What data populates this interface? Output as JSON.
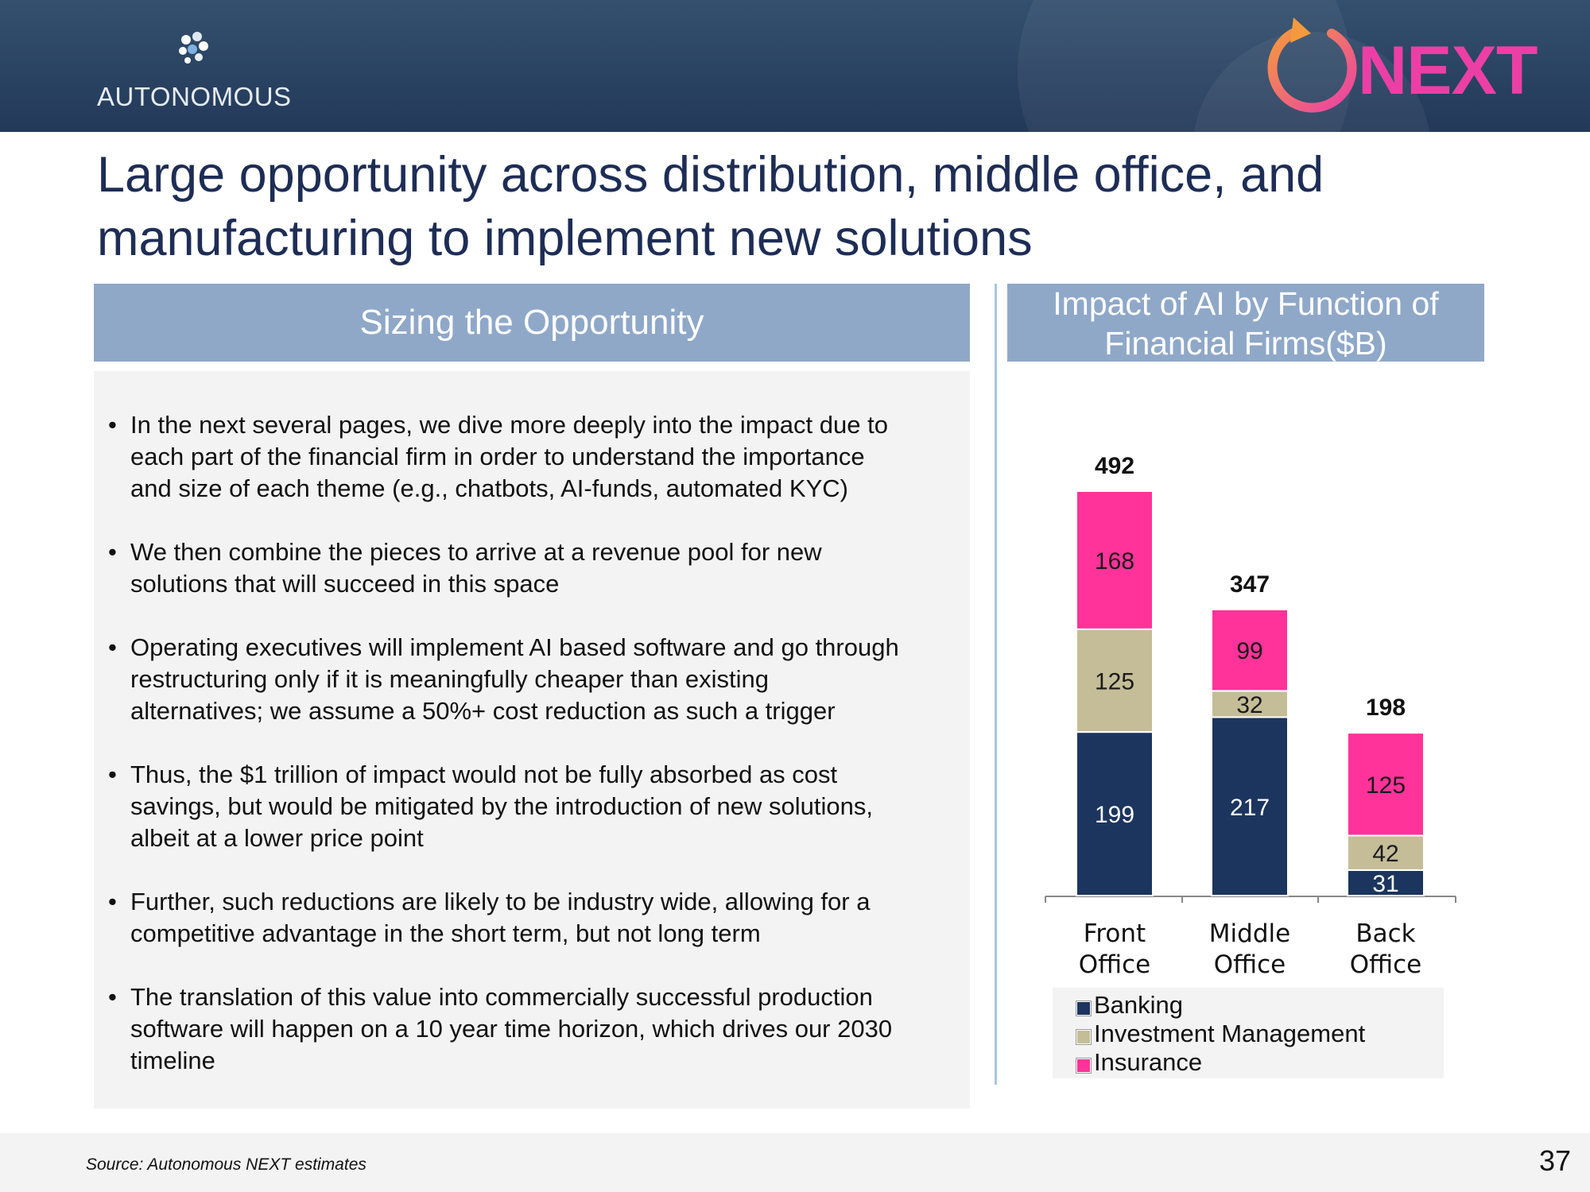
{
  "brand": {
    "name": "AUTONOMOUS",
    "next_label": "NEXT"
  },
  "title": {
    "line1": "Large opportunity across distribution, middle office, and",
    "line2": "manufacturing to implement new solutions"
  },
  "left_panel": {
    "heading": "Sizing the Opportunity",
    "bullets": [
      [
        "In the next several pages, we dive more deeply into the impact due to",
        "each part of the financial firm in order to understand the importance",
        "and size of each theme (e.g., chatbots, AI-funds, automated KYC)"
      ],
      [
        "We then combine the pieces to arrive at a revenue pool for new",
        "solutions that will succeed in this space"
      ],
      [
        "Operating executives will implement AI based software and go through",
        "restructuring only if it is meaningfully cheaper than existing",
        "alternatives; we assume a 50%+ cost reduction as such a trigger"
      ],
      [
        "Thus, the $1 trillion of impact would not be fully absorbed as cost",
        "savings, but would be mitigated by the introduction of new solutions,",
        "albeit at a lower price point"
      ],
      [
        "Further, such reductions are likely to be industry wide, allowing for a",
        "competitive advantage in the short term, but not long term"
      ],
      [
        "The translation of this value into commercially successful production",
        "software will happen on a 10 year time horizon, which drives our 2030",
        "timeline"
      ]
    ]
  },
  "chart_data": {
    "type": "bar",
    "stacked": true,
    "title": "Impact of AI by Function of Financial Firms($B)",
    "title_lines": [
      "Impact of AI by Function of",
      "Financial Firms($B)"
    ],
    "categories": [
      [
        "Front",
        "Office"
      ],
      [
        "Middle",
        "Office"
      ],
      [
        "Back",
        "Office"
      ]
    ],
    "series": [
      {
        "name": "Banking",
        "color": "#1c355e",
        "label_color": "#ffffff",
        "values": [
          199,
          217,
          31
        ]
      },
      {
        "name": "Investment Management",
        "color": "#c4bd97",
        "label_color": "#1a1a1a",
        "values": [
          125,
          32,
          42
        ]
      },
      {
        "name": "Insurance",
        "color": "#ff3399",
        "label_color": "#1a1a1a",
        "values": [
          168,
          99,
          125
        ]
      }
    ],
    "totals": [
      492,
      347,
      198
    ],
    "ylim": [
      0,
      492
    ],
    "legend_position": "bottom"
  },
  "footer": {
    "source": "Source: Autonomous NEXT estimates",
    "page_number": "37"
  }
}
